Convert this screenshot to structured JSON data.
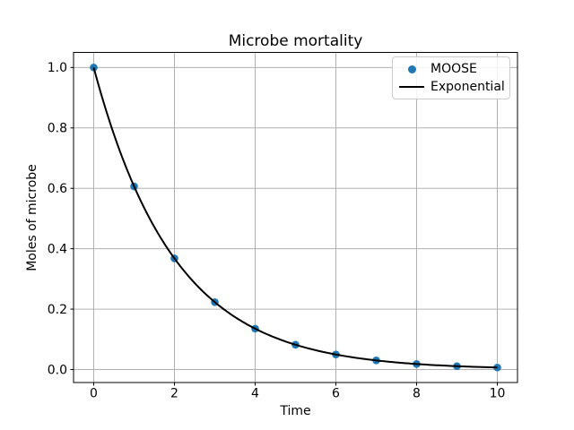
{
  "figure": {
    "background_color": "#ffffff"
  },
  "chart_data": {
    "type": "scatter",
    "title": "Microbe mortality",
    "xlabel": "Time",
    "ylabel": "Moles of microbe",
    "xlim": [
      -0.5,
      10.5
    ],
    "ylim": [
      -0.043,
      1.05
    ],
    "xticks": [
      0,
      2,
      4,
      6,
      8,
      10
    ],
    "xtick_labels": [
      "0",
      "2",
      "4",
      "6",
      "8",
      "10"
    ],
    "yticks": [
      0.0,
      0.2,
      0.4,
      0.6,
      0.8,
      1.0
    ],
    "ytick_labels": [
      "0.0",
      "0.2",
      "0.4",
      "0.6",
      "0.8",
      "1.0"
    ],
    "grid": true,
    "grid_color": "#b0b0b0",
    "spine_color": "#000000",
    "legend": {
      "position": "upper right"
    },
    "series": [
      {
        "name": "MOOSE",
        "type": "scatter",
        "marker": "circle",
        "color": "#1f77b4",
        "x": [
          0,
          1,
          2,
          3,
          4,
          5,
          6,
          7,
          8,
          9,
          10
        ],
        "y": [
          1.0,
          0.6065,
          0.3679,
          0.2231,
          0.1353,
          0.0821,
          0.0498,
          0.0302,
          0.0183,
          0.0111,
          0.0067
        ]
      },
      {
        "name": "Exponential",
        "type": "line",
        "color": "#000000",
        "model": {
          "kind": "exponential_decay",
          "formula": "y = exp(-t/2)",
          "amplitude": 1.0,
          "rate": 0.5,
          "x_start": 0,
          "x_end": 10,
          "samples": 201
        }
      }
    ]
  }
}
